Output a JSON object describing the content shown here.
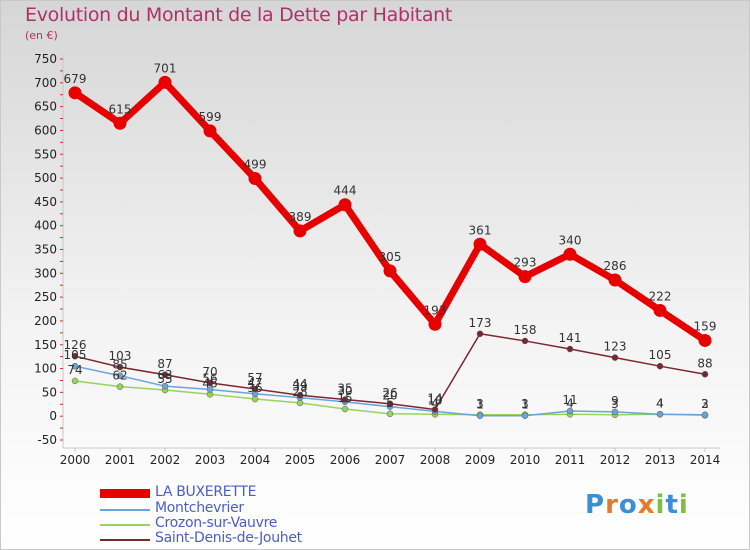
{
  "header": {
    "title": "Evolution du Montant de la Dette par Habitant",
    "unit": "(en €)"
  },
  "logo": {
    "letters": [
      "P",
      "r",
      "o",
      "x",
      "i",
      "t",
      "i"
    ],
    "colors": [
      "#3b8fd6",
      "#e8792a",
      "#3b8fd6",
      "#e8792a",
      "#7fbf3f",
      "#3b8fd6",
      "#7fbf3f"
    ]
  },
  "chart_data": {
    "type": "line",
    "title": "Evolution du Montant de la Dette par Habitant",
    "ylabel": "(en €)",
    "xlabel": "",
    "ylim": [
      -50,
      750
    ],
    "ytick_step": 50,
    "grid": false,
    "legend_position": "bottom-left",
    "categories": [
      "2000",
      "2001",
      "2002",
      "2003",
      "2004",
      "2005",
      "2006",
      "2007",
      "2008",
      "2009",
      "2010",
      "2011",
      "2012",
      "2013",
      "2014"
    ],
    "series": [
      {
        "name": "LA BUXERETTE",
        "color": "#e60000",
        "values": [
          679,
          615,
          701,
          599,
          499,
          389,
          444,
          305,
          193,
          361,
          293,
          340,
          286,
          222,
          159
        ]
      },
      {
        "name": "Montchevrier",
        "color": "#6aa5d8",
        "values": [
          105,
          85,
          63,
          56,
          47,
          39,
          30,
          20,
          10,
          1,
          1,
          11,
          9,
          4,
          3
        ]
      },
      {
        "name": "Crozon-sur-Vauvre",
        "color": "#96d45a",
        "values": [
          74,
          62,
          55,
          46,
          36,
          28,
          15,
          5,
          4,
          3,
          3,
          4,
          3,
          4,
          2
        ]
      },
      {
        "name": "Saint-Denis-de-Jouhet",
        "color": "#7a2830",
        "values": [
          126,
          103,
          87,
          70,
          57,
          44,
          35,
          26,
          14,
          173,
          158,
          141,
          123,
          105,
          88
        ]
      }
    ]
  }
}
